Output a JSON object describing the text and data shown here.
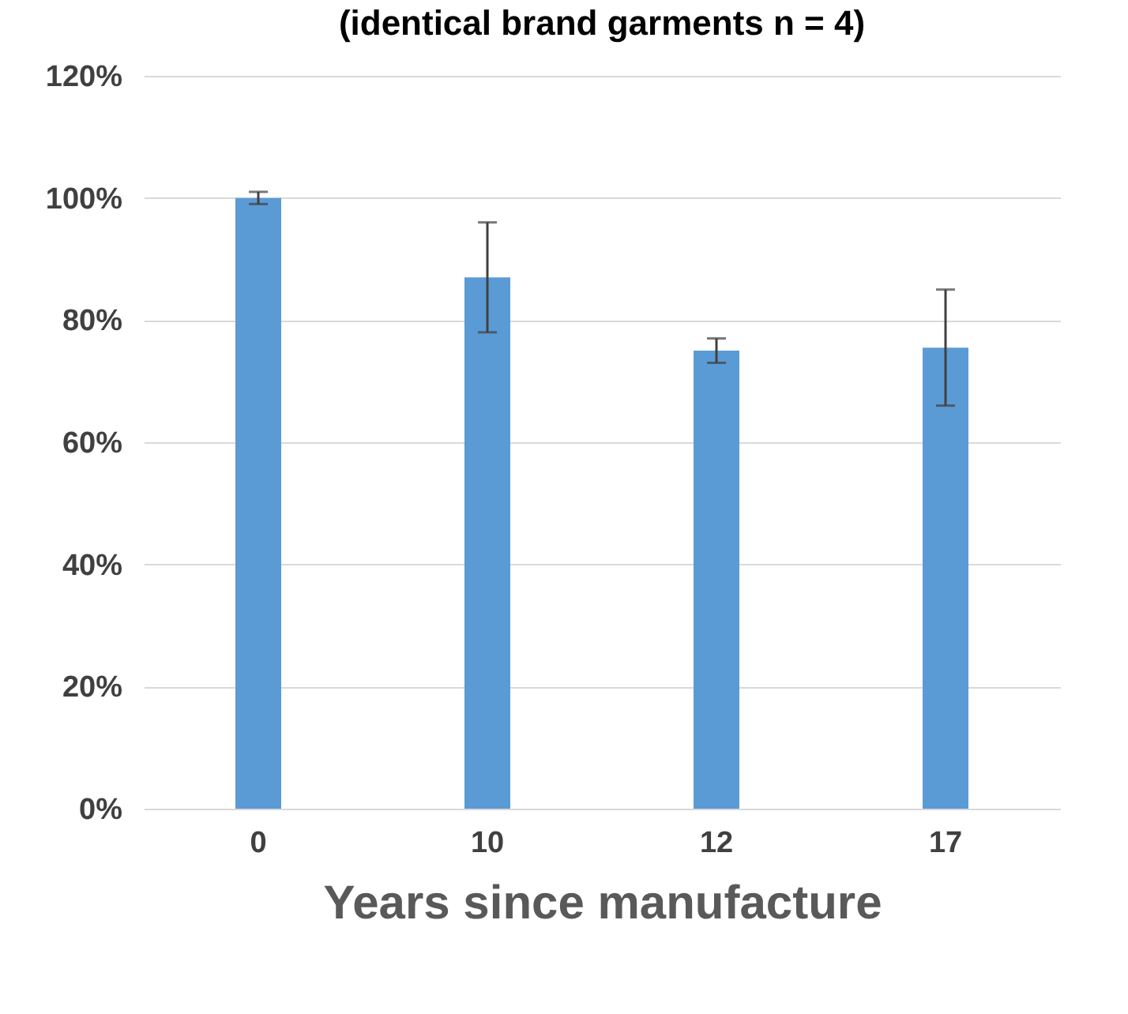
{
  "chart_data": {
    "type": "bar",
    "title": "(identical brand garments n = 4)",
    "xlabel": "Years since manufacture",
    "categories": [
      "0",
      "10",
      "12",
      "17"
    ],
    "values": [
      100,
      87,
      75,
      75.5
    ],
    "errors": [
      1,
      9,
      2,
      9.5
    ],
    "color": "#5b9bd5",
    "ylim": [
      0,
      120
    ],
    "yticks": [
      {
        "value": 0,
        "label": "0%"
      },
      {
        "value": 20,
        "label": "20%"
      },
      {
        "value": 40,
        "label": "40%"
      },
      {
        "value": 60,
        "label": "60%"
      },
      {
        "value": 80,
        "label": "80%"
      },
      {
        "value": 100,
        "label": "100%"
      },
      {
        "value": 120,
        "label": "120%"
      }
    ],
    "grid": true
  }
}
